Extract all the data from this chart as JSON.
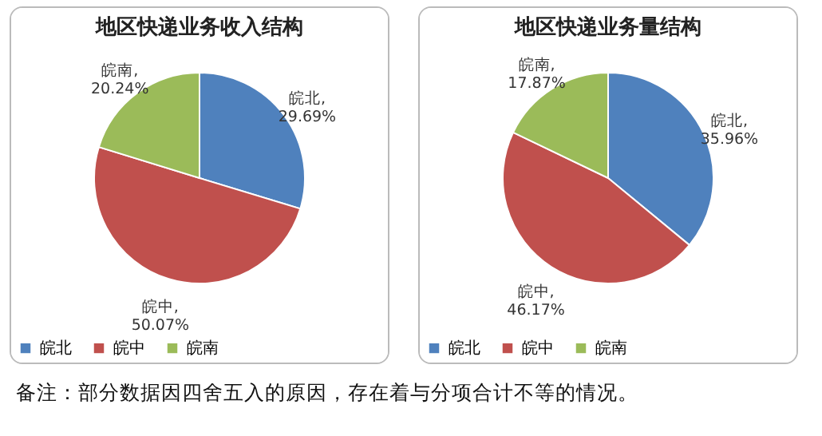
{
  "chart_data": [
    {
      "type": "pie",
      "title": "地区快递业务收入结构",
      "categories": [
        "皖北",
        "皖中",
        "皖南"
      ],
      "values": [
        29.69,
        50.07,
        20.24
      ],
      "colors": [
        "#4f81bd",
        "#c0504d",
        "#9bbb59"
      ],
      "value_labels": [
        "皖北,\n29.69%",
        "皖中,\n50.07%",
        "皖南,\n20.24%"
      ],
      "legend": "bottom",
      "annotations": [
        "备注：部分数据因四舍五入的原因，存在着与分项合计不等的情况。"
      ]
    },
    {
      "type": "pie",
      "title": "地区快递业务量结构",
      "categories": [
        "皖北",
        "皖中",
        "皖南"
      ],
      "values": [
        35.96,
        46.17,
        17.87
      ],
      "colors": [
        "#4f81bd",
        "#c0504d",
        "#9bbb59"
      ],
      "value_labels": [
        "皖北,\n35.96%",
        "皖中,\n46.17%",
        "皖南,\n17.87%"
      ],
      "legend": "bottom"
    }
  ]
}
